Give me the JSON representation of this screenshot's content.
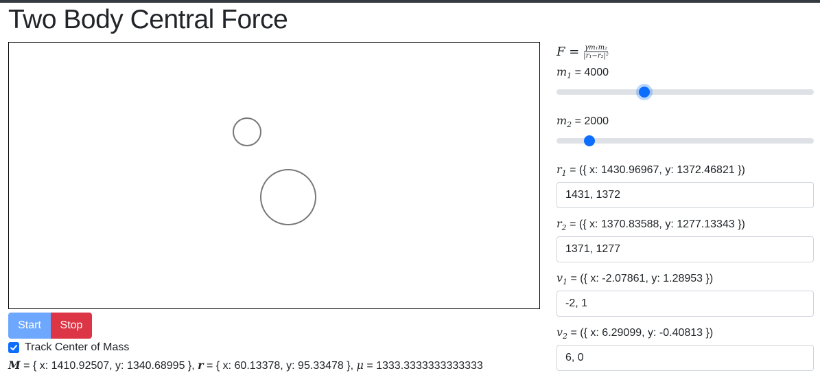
{
  "page": {
    "title": "Two Body Central Force"
  },
  "controls": {
    "start_label": "Start",
    "stop_label": "Stop",
    "track_com_label": "Track Center of Mass",
    "track_com_checked": true
  },
  "summary": {
    "M_label": "M",
    "M_value": " = { x: 1410.92507, y: 1340.68995 },",
    "r_label": "r",
    "r_value": " = { x: 60.13378, y: 95.33478 },",
    "mu_label": "μ",
    "mu_value": " = 1333.3333333333333"
  },
  "formula": {
    "lhs": "F =",
    "numerator": "γm₁m₂",
    "denominator": "|r₁−r₂|²"
  },
  "params": {
    "m1": {
      "symbol": "m",
      "sub": "1",
      "value_text": " = 4000",
      "slider_fraction": 0.34
    },
    "m2": {
      "symbol": "m",
      "sub": "2",
      "value_text": " = 2000",
      "slider_fraction": 0.127
    },
    "r1": {
      "symbol": "r",
      "sub": "1",
      "value_text": " = ({ x: 1430.96967, y: 1372.46821 })",
      "input": "1431, 1372"
    },
    "r2": {
      "symbol": "r",
      "sub": "2",
      "value_text": " = ({ x: 1370.83588, y: 1277.13343 })",
      "input": "1371, 1277"
    },
    "v1": {
      "symbol": "v",
      "sub": "1",
      "value_text": " = ({ x: -2.07861, y: 1.28953 })",
      "input": "-2, 1"
    },
    "v2": {
      "symbol": "v",
      "sub": "2",
      "value_text": " = ({ x: 6.29099, y: -0.40813 })",
      "input": "6, 0"
    }
  },
  "colors": {
    "accent": "#0d6efd",
    "start": "#6ea8fe",
    "stop": "#dc3545",
    "body_stroke": "#777777"
  }
}
